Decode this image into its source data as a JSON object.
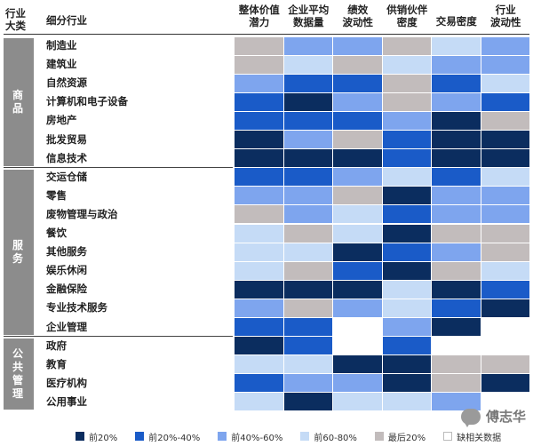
{
  "header": {
    "corner_label": "行业\n大类",
    "sub_label": "细分行业"
  },
  "colors": {
    "c1": "#0b2d5f",
    "c2": "#1a5bc8",
    "c3": "#7ea5ee",
    "c4": "#c5dbf6",
    "c5": "#c2bcbc",
    "na": "#ffffff"
  },
  "legend": [
    {
      "key": "c1",
      "label": "前20%"
    },
    {
      "key": "c2",
      "label": "前20%-40%"
    },
    {
      "key": "c3",
      "label": "前40%-60%"
    },
    {
      "key": "c4",
      "label": "前60-80%"
    },
    {
      "key": "c5",
      "label": "最后20%"
    },
    {
      "key": "na",
      "label": "缺相关数据"
    }
  ],
  "sectors": [
    {
      "label": "商\n品"
    },
    {
      "label": "服\n务"
    },
    {
      "label": "公\n共\n管\n理"
    }
  ],
  "watermark": {
    "text": "傅志华",
    "icon": "wechat-icon"
  },
  "chart_data": {
    "type": "heatmap",
    "columns": [
      "整体价值\n潜力",
      "企业平均\n数据量",
      "绩效\n波动性",
      "供销伙伴\n密度",
      "交易密度",
      "行业\n波动性"
    ],
    "rows": [
      {
        "sector": 0,
        "label": "制造业",
        "values": [
          "c5",
          "c3",
          "c3",
          "c5",
          "c4",
          "c3"
        ]
      },
      {
        "sector": 0,
        "label": "建筑业",
        "values": [
          "c5",
          "c4",
          "c5",
          "c4",
          "c3",
          "c3"
        ]
      },
      {
        "sector": 0,
        "label": "自然资源",
        "values": [
          "c3",
          "c2",
          "c2",
          "c5",
          "c2",
          "c4"
        ]
      },
      {
        "sector": 0,
        "label": "计算机和电子设备",
        "values": [
          "c2",
          "c1",
          "c3",
          "c5",
          "c3",
          "c2"
        ]
      },
      {
        "sector": 0,
        "label": "房地产",
        "values": [
          "c2",
          "c2",
          "c2",
          "c3",
          "c1",
          "c5"
        ]
      },
      {
        "sector": 0,
        "label": "批发贸易",
        "values": [
          "c1",
          "c3",
          "c5",
          "c2",
          "c1",
          "c1"
        ]
      },
      {
        "sector": 0,
        "label": "信息技术",
        "values": [
          "c1",
          "c1",
          "c1",
          "c2",
          "c1",
          "c1"
        ]
      },
      {
        "sector": 1,
        "label": "交运仓储",
        "values": [
          "c2",
          "c2",
          "c3",
          "c4",
          "c2",
          "c4"
        ]
      },
      {
        "sector": 1,
        "label": "零售",
        "values": [
          "c3",
          "c3",
          "c5",
          "c1",
          "c3",
          "c3"
        ]
      },
      {
        "sector": 1,
        "label": "废物管理与政治",
        "values": [
          "c5",
          "c3",
          "c4",
          "c2",
          "c3",
          "c3"
        ]
      },
      {
        "sector": 1,
        "label": "餐饮",
        "values": [
          "c4",
          "c5",
          "c4",
          "c1",
          "c5",
          "c5"
        ]
      },
      {
        "sector": 1,
        "label": "其他服务",
        "values": [
          "c4",
          "c4",
          "c1",
          "c2",
          "c3",
          "c5"
        ]
      },
      {
        "sector": 1,
        "label": "娱乐休闲",
        "values": [
          "c4",
          "c5",
          "c2",
          "c1",
          "c5",
          "c4"
        ]
      },
      {
        "sector": 1,
        "label": "金融保险",
        "values": [
          "c1",
          "c1",
          "c1",
          "c4",
          "c1",
          "c2"
        ]
      },
      {
        "sector": 1,
        "label": "专业技术服务",
        "values": [
          "c3",
          "c5",
          "c3",
          "c4",
          "c2",
          "c1"
        ]
      },
      {
        "sector": 1,
        "label": "企业管理",
        "values": [
          "c2",
          "c2",
          "na",
          "c3",
          "c1",
          "na"
        ]
      },
      {
        "sector": 2,
        "label": "政府",
        "values": [
          "c1",
          "c2",
          "na",
          "c2",
          "na",
          "na"
        ]
      },
      {
        "sector": 2,
        "label": "教育",
        "values": [
          "c4",
          "c4",
          "c1",
          "c1",
          "c5",
          "c5"
        ]
      },
      {
        "sector": 2,
        "label": "医疗机构",
        "values": [
          "c2",
          "c3",
          "c3",
          "c1",
          "c5",
          "c1"
        ]
      },
      {
        "sector": 2,
        "label": "公用事业",
        "values": [
          "c4",
          "c1",
          "c4",
          "c4",
          "c3",
          "na"
        ]
      }
    ]
  }
}
